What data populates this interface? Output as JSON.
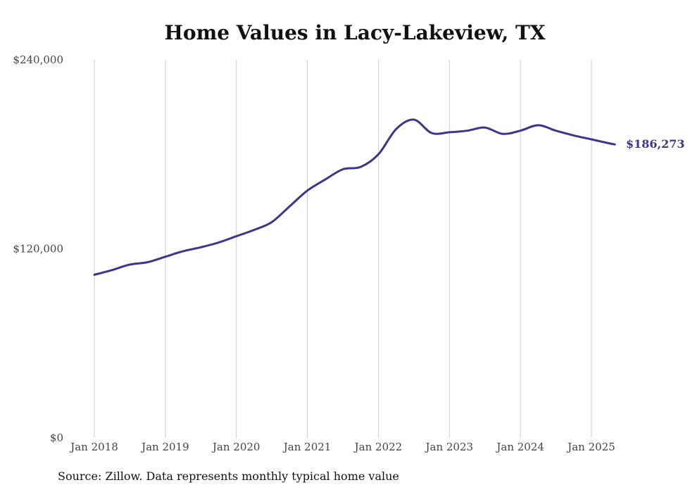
{
  "chart_data": {
    "type": "line",
    "title": "Home Values in Lacy-Lakeview, TX",
    "xlabel": "",
    "ylabel": "",
    "ylim": [
      0,
      240000
    ],
    "yticks": [
      {
        "value": 0,
        "label": "$0"
      },
      {
        "value": 120000,
        "label": "$120,000"
      },
      {
        "value": 240000,
        "label": "$240,000"
      }
    ],
    "xticks": [
      {
        "value": 2018,
        "label": "Jan 2018"
      },
      {
        "value": 2019,
        "label": "Jan 2019"
      },
      {
        "value": 2020,
        "label": "Jan 2020"
      },
      {
        "value": 2021,
        "label": "Jan 2021"
      },
      {
        "value": 2022,
        "label": "Jan 2022"
      },
      {
        "value": 2023,
        "label": "Jan 2023"
      },
      {
        "value": 2024,
        "label": "Jan 2024"
      },
      {
        "value": 2025,
        "label": "Jan 2025"
      }
    ],
    "grid": "vertical",
    "line_color": "#3d348b",
    "end_label": "$186,273",
    "series": [
      {
        "x": [
          2018.0,
          2018.25,
          2018.5,
          2018.75,
          2019.0,
          2019.25,
          2019.5,
          2019.75,
          2020.0,
          2020.25,
          2020.5,
          2020.75,
          2021.0,
          2021.25,
          2021.5,
          2021.75,
          2022.0,
          2022.25,
          2022.5,
          2022.75,
          2023.0,
          2023.25,
          2023.5,
          2023.75,
          2024.0,
          2024.25,
          2024.5,
          2024.75,
          2025.0,
          2025.25,
          2025.33
        ],
        "y": [
          103500,
          106500,
          110000,
          111500,
          115000,
          118500,
          121000,
          124000,
          128000,
          132000,
          137000,
          147000,
          157000,
          164000,
          170500,
          172000,
          180000,
          196000,
          202000,
          193500,
          194000,
          195000,
          197000,
          193000,
          195000,
          198500,
          195000,
          192000,
          189500,
          187000,
          186273
        ]
      }
    ]
  },
  "footer": {
    "source": "Source: Zillow. Data represents monthly typical home value"
  }
}
